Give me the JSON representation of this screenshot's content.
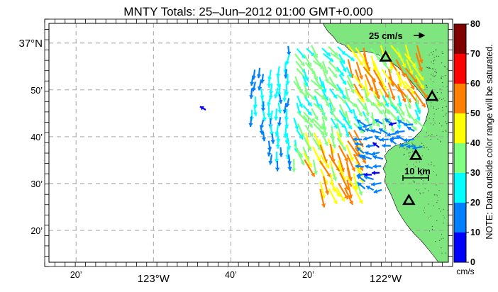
{
  "title": "MNTY Totals: 25–Jun–2012 01:00 GMT+0.000",
  "map": {
    "lat_labels": [
      {
        "deg": "37",
        "min": "",
        "hemi": "N",
        "text": "37°N",
        "lat": 37.0
      },
      {
        "text": "50’",
        "lat": 36.8333
      },
      {
        "text": "40’",
        "lat": 36.6667
      },
      {
        "text": "30’",
        "lat": 36.5
      },
      {
        "text": "20’",
        "lat": 36.3333
      }
    ],
    "lon_labels": [
      {
        "text": "20’",
        "lon": -123.3333
      },
      {
        "text": "123°W",
        "lon": -123.0
      },
      {
        "text": "40’",
        "lon": -122.6667
      },
      {
        "text": "20’",
        "lon": -122.3333
      },
      {
        "text": "122°W",
        "lon": -122.0
      }
    ],
    "lon_range": [
      -123.45,
      -121.73
    ],
    "lat_range": [
      36.22,
      37.07
    ],
    "ocean_color": "#ffffff",
    "land_color": "#7fe57f",
    "reference_arrow_label": "25 cm/s",
    "scale_bar_label": "10 km",
    "stations": [
      {
        "name": "station-1",
        "lon": -122.0,
        "lat": 36.95
      },
      {
        "name": "station-2",
        "lon": -121.8,
        "lat": 36.81
      },
      {
        "name": "station-3",
        "lon": -121.87,
        "lat": 36.6
      },
      {
        "name": "station-4",
        "lon": -121.9,
        "lat": 36.44
      }
    ]
  },
  "colorbar": {
    "ticks": [
      "0",
      "10",
      "20",
      "30",
      "40",
      "50",
      "60",
      "70",
      "80"
    ],
    "colors": [
      "#0000ff",
      "#0080ff",
      "#00ffff",
      "#80ff80",
      "#ffff00",
      "#ff8000",
      "#ff0000",
      "#800000"
    ],
    "unit": "cm/s",
    "note": "NOTE: Data outside color range will be saturated."
  }
}
